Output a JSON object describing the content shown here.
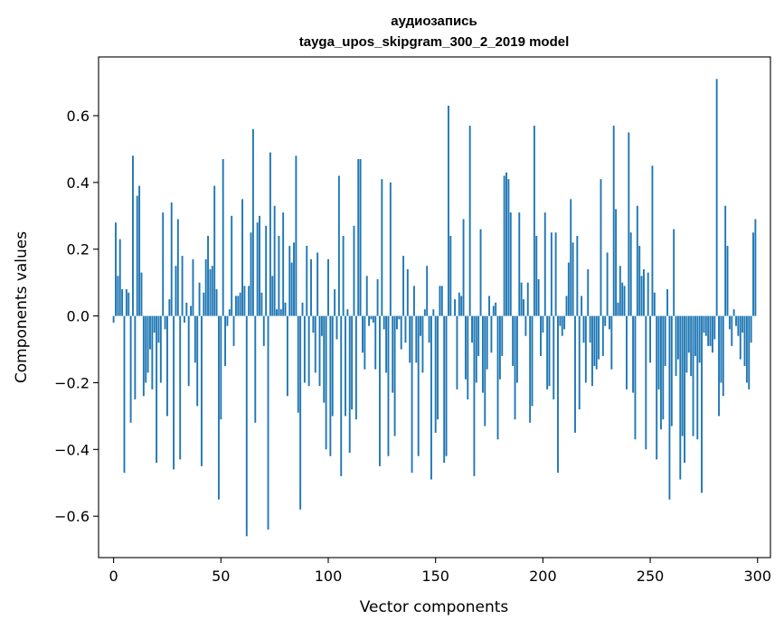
{
  "chart_data": {
    "type": "bar",
    "title_line1": "аудиозапись",
    "title_line2": "tayga_upos_skipgram_300_2_2019 model",
    "xlabel": "Vector components",
    "ylabel": "Components values",
    "xlim": [
      -7,
      306
    ],
    "ylim": [
      -0.724,
      0.776
    ],
    "xticks": [
      0,
      50,
      100,
      150,
      200,
      250,
      300
    ],
    "xtick_labels": [
      "0",
      "50",
      "100",
      "150",
      "200",
      "250",
      "300"
    ],
    "yticks": [
      -0.6,
      -0.4,
      -0.2,
      0.0,
      0.2,
      0.4,
      0.6
    ],
    "ytick_labels": [
      "−0.6",
      "−0.4",
      "−0.2",
      "0.0",
      "0.2",
      "0.4",
      "0.6"
    ],
    "bar_color": "#1f77b4",
    "values": [
      -0.02,
      0.28,
      0.12,
      0.23,
      0.08,
      -0.47,
      0.08,
      0.07,
      -0.32,
      0.48,
      -0.25,
      0.36,
      0.39,
      0.13,
      -0.24,
      -0.2,
      -0.17,
      -0.1,
      -0.22,
      -0.05,
      -0.44,
      -0.08,
      -0.2,
      0.31,
      -0.04,
      -0.3,
      0.05,
      0.34,
      -0.46,
      0.15,
      0.29,
      -0.43,
      0.18,
      -0.02,
      0.04,
      -0.21,
      0.03,
      0.17,
      -0.14,
      -0.27,
      0.1,
      -0.45,
      0.07,
      0.17,
      0.24,
      0.14,
      0.15,
      0.39,
      0.08,
      -0.55,
      -0.31,
      0.47,
      -0.15,
      -0.03,
      0.02,
      0.3,
      -0.09,
      0.06,
      0.06,
      0.07,
      0.35,
      0.09,
      -0.66,
      0.09,
      0.25,
      0.56,
      -0.32,
      0.28,
      0.3,
      0.07,
      -0.09,
      0.27,
      -0.64,
      0.49,
      0.12,
      0.33,
      0.02,
      0.24,
      0.02,
      0.31,
      0.04,
      -0.24,
      0.21,
      0.16,
      0.22,
      0.48,
      -0.29,
      -0.58,
      0.04,
      -0.2,
      0.21,
      -0.21,
      0.17,
      -0.05,
      -0.17,
      0.19,
      -0.21,
      -0.06,
      -0.26,
      -0.4,
      0.17,
      -0.42,
      -0.3,
      0.08,
      -0.07,
      0.42,
      -0.48,
      0.24,
      -0.3,
      0.02,
      -0.41,
      -0.28,
      0.27,
      -0.31,
      0.47,
      0.47,
      -0.11,
      -0.16,
      0.12,
      -0.03,
      -0.01,
      -0.02,
      -0.16,
      0.11,
      -0.45,
      0.41,
      -0.04,
      -0.17,
      -0.42,
      0.4,
      -0.23,
      -0.36,
      -0.04,
      -0.01,
      -0.1,
      0.18,
      -0.08,
      0.14,
      -0.14,
      -0.47,
      0.09,
      -0.14,
      -0.42,
      -0.06,
      -0.17,
      0.02,
      0.15,
      -0.08,
      -0.49,
      0.02,
      -0.35,
      -0.31,
      0.09,
      0.09,
      -0.44,
      -0.42,
      0.63,
      0.24,
      0.0,
      0.05,
      -0.22,
      0.07,
      0.06,
      0.29,
      -0.19,
      -0.25,
      0.57,
      -0.08,
      -0.48,
      -0.2,
      -0.12,
      0.26,
      -0.23,
      -0.33,
      -0.16,
      0.06,
      -0.11,
      0.03,
      0.04,
      -0.37,
      -0.19,
      -0.12,
      0.42,
      0.43,
      0.41,
      0.31,
      -0.15,
      -0.31,
      -0.2,
      0.31,
      0.1,
      0.05,
      -0.06,
      0.1,
      -0.32,
      -0.27,
      0.57,
      0.24,
      0.11,
      -0.12,
      -0.05,
      0.31,
      -0.22,
      -0.21,
      0.25,
      -0.25,
      0.25,
      -0.47,
      -0.03,
      -0.06,
      -0.04,
      0.06,
      0.16,
      0.35,
      0.22,
      -0.35,
      0.24,
      -0.28,
      0.06,
      -0.08,
      -0.2,
      0.14,
      -0.08,
      -0.21,
      -0.15,
      -0.16,
      -0.13,
      0.41,
      -0.12,
      -0.03,
      0.19,
      -0.04,
      -0.16,
      0.57,
      0.32,
      0.04,
      0.15,
      0.1,
      0.09,
      -0.22,
      0.55,
      0.25,
      -0.23,
      -0.37,
      0.33,
      0.21,
      0.12,
      0.14,
      -0.4,
      0.13,
      -0.14,
      0.45,
      0.07,
      -0.43,
      -0.22,
      -0.34,
      -0.31,
      -0.15,
      0.08,
      -0.55,
      -0.33,
      0.26,
      -0.18,
      -0.13,
      -0.49,
      -0.36,
      -0.44,
      -0.17,
      -0.11,
      -0.18,
      -0.36,
      -0.12,
      -0.37,
      -0.14,
      -0.53,
      -0.05,
      -0.06,
      -0.09,
      -0.09,
      -0.11,
      -0.07,
      0.71,
      -0.3,
      -0.2,
      -0.24,
      0.33,
      0.21,
      -0.04,
      -0.09,
      0.02,
      -0.03,
      -0.06,
      -0.13,
      -0.05,
      -0.15,
      -0.2,
      -0.22,
      -0.08,
      0.25,
      0.29
    ]
  }
}
